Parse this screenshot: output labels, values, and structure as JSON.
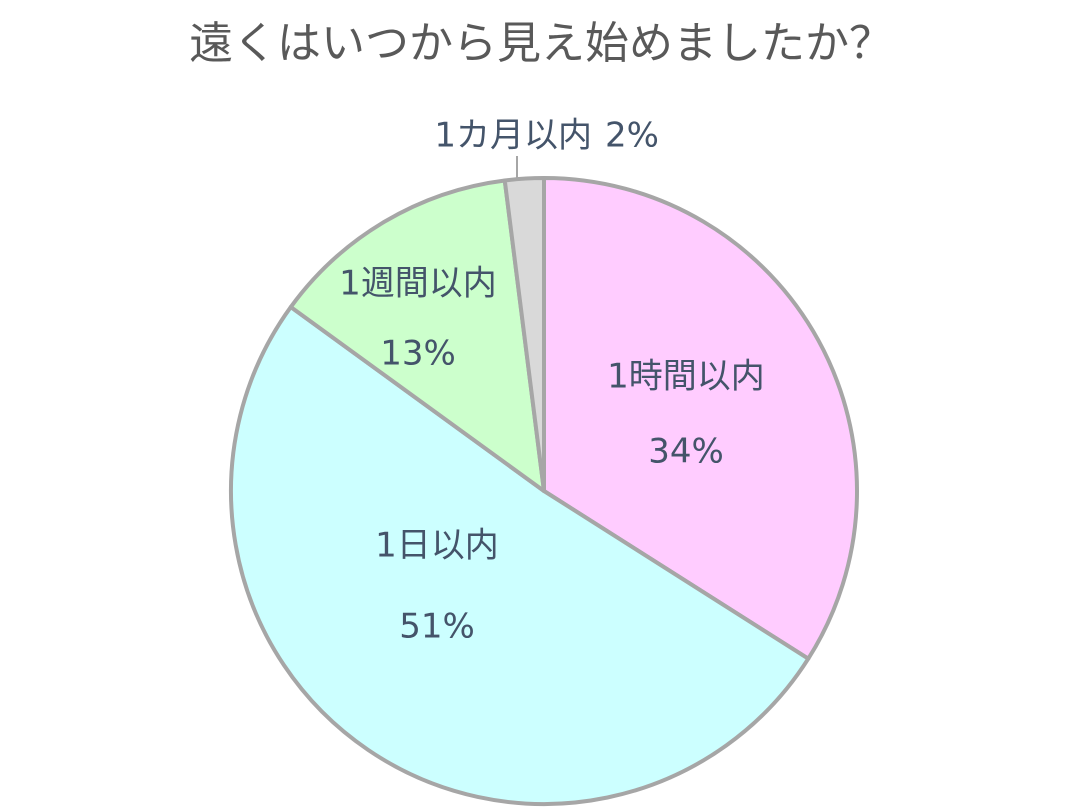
{
  "chart_data": {
    "type": "pie",
    "title": "遠くはいつから見え始めましたか？",
    "categories": [
      "1時間以内",
      "1日以内",
      "1週間以内",
      "1カ月以内"
    ],
    "values": [
      34,
      51,
      13,
      2
    ],
    "value_labels": [
      "34%",
      "51%",
      "13%",
      "2%"
    ],
    "colors": [
      "#ffccff",
      "#ccffff",
      "#ccffcc",
      "#d9d9d9"
    ]
  }
}
